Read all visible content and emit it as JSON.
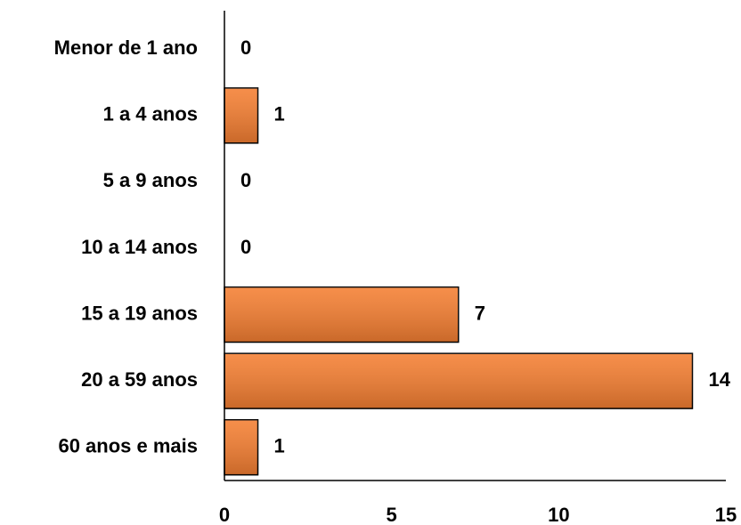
{
  "chart_data": {
    "type": "barh",
    "categories": [
      "Menor de 1 ano",
      "1 a 4 anos",
      "5 a 9 anos",
      "10 a 14 anos",
      "15 a 19 anos",
      "20 a 59 anos",
      "60 anos e mais"
    ],
    "values": [
      0,
      1,
      0,
      0,
      7,
      14,
      1
    ],
    "color": "#f57f32",
    "xlim": [
      0,
      15
    ],
    "xticks": [
      0,
      5,
      10,
      15
    ],
    "grid": false
  }
}
